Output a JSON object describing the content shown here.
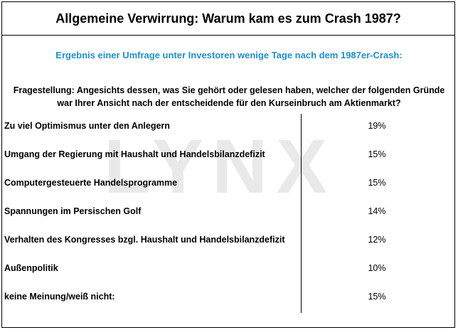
{
  "title": "Allgemeine Verwirrung: Warum kam es zum Crash 1987?",
  "subtitle": "Ergebnis einer Umfrage unter Investoren wenige Tage nach dem 1987er-Crash:",
  "question": {
    "line1": "Fragestellung: Angesichts dessen, was Sie gehört oder gelesen haben, welcher der folgenden Gründe",
    "line2": "war Ihrer Ansicht nach der entscheidende für den Kurseinbruch am Aktienmarkt?"
  },
  "watermark": "LYNX",
  "rows": [
    {
      "label": "Zu viel Optimismus unter den Anlegern",
      "value": "19%"
    },
    {
      "label": "Umgang der Regierung mit  Haushalt und  Handelsbilanzdefizit",
      "value": "15%"
    },
    {
      "label": "Computergesteuerte Handelsprogramme",
      "value": "15%"
    },
    {
      "label": "Spannungen im Persischen Golf",
      "value": "14%"
    },
    {
      "label": "Verhalten des Kongresses bzgl.  Haushalt und Handelsbilanzdefizit",
      "value": "12%"
    },
    {
      "label": "Außenpolitik",
      "value": "10%"
    },
    {
      "label": "keine Meinung/weiß nicht:",
      "value": "15%"
    }
  ]
}
